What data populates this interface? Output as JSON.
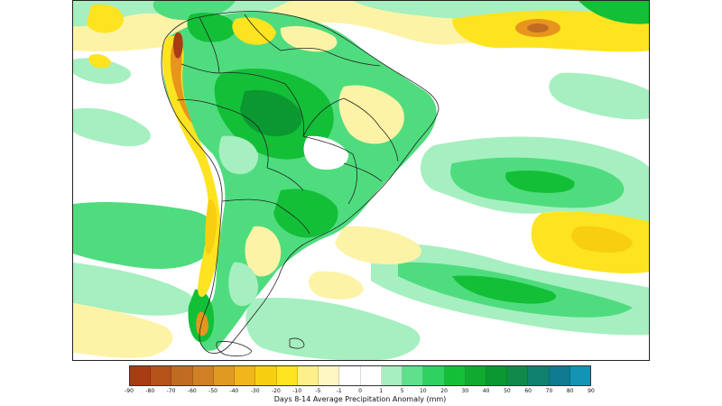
{
  "legend": {
    "title": "Days 8-14 Average Precipitation Anomaly (mm)",
    "ticks": [
      "-90",
      "-80",
      "-70",
      "-60",
      "-50",
      "-40",
      "-30",
      "-20",
      "-10",
      "-5",
      "-1",
      "0",
      "1",
      "5",
      "10",
      "20",
      "30",
      "40",
      "50",
      "60",
      "70",
      "80",
      "90"
    ],
    "colors": [
      "#a83c12",
      "#b5521a",
      "#c06b22",
      "#cf8025",
      "#e09a20",
      "#f0b61a",
      "#f8cf10",
      "#fde320",
      "#fdf08a",
      "#fef7c4",
      "#ffffff",
      "#ffffff",
      "#a6efc0",
      "#5ee08c",
      "#2fd160",
      "#14bf38",
      "#10aa30",
      "#0b9830",
      "#0f8a4a",
      "#10806f",
      "#0f7a91",
      "#1493b4",
      "#2eaec8"
    ]
  },
  "map": {
    "colors": {
      "light_green": "#a6efc0",
      "medium_green": "#4fdc7e",
      "dark_green": "#14bf38",
      "deep_green": "#0b9830",
      "pale_yellow": "#fdf3a6",
      "yellow": "#fde320",
      "orange": "#e8951d",
      "brown": "#a83c12",
      "border": "#222222"
    }
  }
}
